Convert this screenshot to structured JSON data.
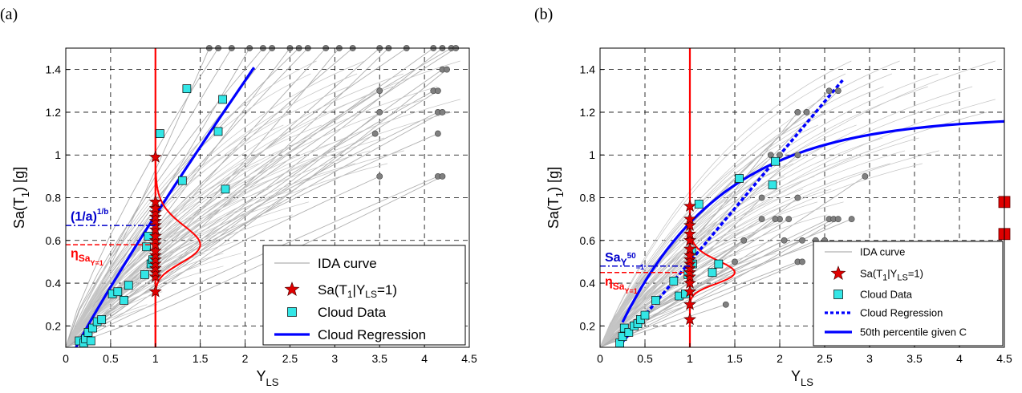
{
  "chart_data": [
    {
      "type": "scatter",
      "panel_label": "(a)",
      "xlabel": "Y",
      "xlabel_sub": "LS",
      "ylabel": "Sa(T",
      "ylabel_sub": "1",
      "ylabel_tail": ") [g]",
      "xlim": [
        0,
        4.5
      ],
      "ylim": [
        0.1,
        1.5
      ],
      "xticks": [
        "0",
        "0.5",
        "1",
        "1.5",
        "2",
        "2.5",
        "3",
        "3.5",
        "4",
        "4.5"
      ],
      "yticks": [
        "0.2",
        "0.4",
        "0.6",
        "0.8",
        "1",
        "1.2",
        "1.4"
      ],
      "grid": true,
      "legend_position": "bottom-right",
      "legend": [
        {
          "label": "IDA curve",
          "kind": "gray-line"
        },
        {
          "label": "Sa(T₁|Yₗₛ=1)",
          "kind": "red-star"
        },
        {
          "label": "Cloud Data",
          "kind": "cyan-square"
        },
        {
          "label": "Cloud Regression",
          "kind": "blue-line"
        }
      ],
      "legend_html": [
        "IDA curve",
        "Sa(T<tspan dy='4' font-size='12'>1</tspan><tspan dy='-4'>|Y</tspan><tspan dy='4' font-size='12'>LS</tspan><tspan dy='-4'>=1)</tspan>",
        "Cloud Data",
        "Cloud Regression"
      ],
      "annotations": [
        {
          "text": "(1/a)",
          "sup": "1/b",
          "y": 0.67,
          "color": "#0000cc"
        },
        {
          "text": "η",
          "sub": "Sa",
          "subsub": "Y=1",
          "y": 0.58,
          "color": "#ff0000"
        }
      ],
      "cloud_data": [
        [
          0.15,
          0.13
        ],
        [
          0.2,
          0.12
        ],
        [
          0.22,
          0.14
        ],
        [
          0.25,
          0.17
        ],
        [
          0.28,
          0.13
        ],
        [
          0.3,
          0.19
        ],
        [
          0.35,
          0.22
        ],
        [
          0.4,
          0.23
        ],
        [
          0.52,
          0.35
        ],
        [
          0.58,
          0.36
        ],
        [
          0.65,
          0.32
        ],
        [
          0.7,
          0.39
        ],
        [
          0.88,
          0.44
        ],
        [
          0.9,
          0.57
        ],
        [
          0.92,
          0.62
        ],
        [
          0.95,
          0.49
        ],
        [
          0.97,
          0.51
        ],
        [
          1.05,
          1.1
        ],
        [
          1.3,
          0.88
        ],
        [
          1.35,
          1.31
        ],
        [
          1.7,
          1.11
        ],
        [
          1.75,
          1.26
        ],
        [
          1.78,
          0.84
        ]
      ],
      "star_y": [
        0.36,
        0.43,
        0.45,
        0.47,
        0.49,
        0.51,
        0.53,
        0.55,
        0.58,
        0.6,
        0.62,
        0.65,
        0.67,
        0.69,
        0.71,
        0.73,
        0.75,
        0.78,
        0.99
      ],
      "regression": {
        "a": 2.2,
        "b": 1.1,
        "x_end": 2.1
      },
      "pdf": {
        "median": 0.58,
        "sigma": 0.1,
        "peak_x": 1.5
      },
      "gray_ends": [
        [
          1.6,
          1.5
        ],
        [
          1.7,
          1.5
        ],
        [
          1.85,
          1.5
        ],
        [
          2.05,
          1.5
        ],
        [
          2.2,
          1.5
        ],
        [
          2.3,
          1.5
        ],
        [
          2.5,
          1.5
        ],
        [
          2.6,
          1.5
        ],
        [
          2.7,
          1.5
        ],
        [
          2.9,
          1.5
        ],
        [
          3.05,
          1.5
        ],
        [
          3.2,
          1.5
        ],
        [
          3.5,
          1.5
        ],
        [
          3.6,
          1.5
        ],
        [
          3.8,
          1.5
        ],
        [
          4.1,
          1.5
        ],
        [
          4.2,
          1.5
        ],
        [
          4.3,
          1.5
        ],
        [
          4.35,
          1.5
        ],
        [
          4.2,
          1.4
        ],
        [
          4.25,
          1.4
        ],
        [
          4.1,
          1.3
        ],
        [
          4.15,
          1.3
        ],
        [
          3.5,
          1.2
        ],
        [
          4.15,
          1.2
        ],
        [
          4.2,
          1.2
        ],
        [
          3.45,
          1.1
        ],
        [
          4.15,
          1.1
        ],
        [
          3.5,
          0.9
        ],
        [
          4.15,
          0.9
        ],
        [
          4.2,
          0.9
        ],
        [
          3.5,
          1.3
        ]
      ]
    },
    {
      "type": "scatter",
      "panel_label": "(b)",
      "xlabel": "Y",
      "xlabel_sub": "LS",
      "ylabel": "Sa(T",
      "ylabel_sub": "1",
      "ylabel_tail": ") [g]",
      "xlim": [
        0,
        4.5
      ],
      "ylim": [
        0.1,
        1.5
      ],
      "xticks": [
        "0",
        "0.5",
        "1",
        "1.5",
        "2",
        "2.5",
        "3",
        "3.5",
        "4",
        "4.5"
      ],
      "yticks": [
        "0.2",
        "0.4",
        "0.6",
        "0.8",
        "1",
        "1.2",
        "1.4"
      ],
      "grid": true,
      "legend_position": "bottom-right",
      "legend": [
        {
          "label": "IDA curve",
          "kind": "gray-line"
        },
        {
          "label": "Sa(T₁|Yₗₛ=1)",
          "kind": "red-star"
        },
        {
          "label": "Cloud Data",
          "kind": "cyan-square"
        },
        {
          "label": "Cloud Regression",
          "kind": "blue-dotted"
        },
        {
          "label": "50th percentile given C",
          "kind": "blue-line"
        }
      ],
      "legend_html": [
        "IDA curve",
        "Sa(T<tspan dy='4' font-size='11'>1</tspan><tspan dy='-4'>|Y</tspan><tspan dy='4' font-size='11'>LS</tspan><tspan dy='-4'>=1)</tspan>",
        "Cloud Data",
        "Cloud Regression",
        "50th percentile given C"
      ],
      "annotations": [
        {
          "text": "Sa",
          "sub": "Y",
          "sup": "50",
          "subsub": "=1",
          "y": 0.48,
          "color": "#0000cc"
        },
        {
          "text": "η",
          "sub": "Sa",
          "subsub": "Y=1",
          "y": 0.45,
          "color": "#ff0000"
        }
      ],
      "cloud_data": [
        [
          0.22,
          0.12
        ],
        [
          0.25,
          0.15
        ],
        [
          0.27,
          0.19
        ],
        [
          0.32,
          0.17
        ],
        [
          0.38,
          0.2
        ],
        [
          0.42,
          0.21
        ],
        [
          0.45,
          0.23
        ],
        [
          0.5,
          0.25
        ],
        [
          0.62,
          0.32
        ],
        [
          0.82,
          0.41
        ],
        [
          0.88,
          0.34
        ],
        [
          0.95,
          0.35
        ],
        [
          0.98,
          0.44
        ],
        [
          1.02,
          0.55
        ],
        [
          1.03,
          0.49
        ],
        [
          1.1,
          0.77
        ],
        [
          1.25,
          0.45
        ],
        [
          1.32,
          0.49
        ],
        [
          1.55,
          0.89
        ],
        [
          1.92,
          0.86
        ],
        [
          1.95,
          0.97
        ]
      ],
      "star_y": [
        0.23,
        0.3,
        0.36,
        0.4,
        0.43,
        0.45,
        0.47,
        0.49,
        0.51,
        0.53,
        0.56,
        0.6,
        0.63,
        0.67,
        0.7,
        0.76
      ],
      "regression": {
        "a": 2.5,
        "b": 1.0,
        "x_end": 2.7
      },
      "percentile_curve": {
        "cap": 1.2,
        "x_end": 4.5
      },
      "pdf": {
        "median": 0.45,
        "sigma": 0.08,
        "peak_x": 1.5
      },
      "red_squares": [
        [
          4.5,
          0.63
        ],
        [
          4.5,
          0.78
        ]
      ],
      "gray_ends": [
        [
          1.8,
          0.8
        ],
        [
          2.0,
          0.7
        ],
        [
          2.1,
          0.7
        ],
        [
          2.2,
          0.8
        ],
        [
          2.25,
          0.6
        ],
        [
          2.2,
          0.5
        ],
        [
          2.25,
          0.5
        ],
        [
          2.5,
          0.6
        ],
        [
          2.55,
          0.7
        ],
        [
          2.6,
          0.7
        ],
        [
          2.65,
          0.7
        ],
        [
          2.8,
          0.7
        ],
        [
          2.4,
          0.6
        ],
        [
          2.2,
          1.2
        ],
        [
          2.3,
          1.2
        ],
        [
          2.2,
          1.0
        ],
        [
          2.0,
          1.0
        ],
        [
          1.9,
          1.0
        ],
        [
          1.6,
          0.6
        ],
        [
          1.4,
          0.3
        ],
        [
          1.5,
          0.5
        ],
        [
          2.55,
          1.3
        ],
        [
          2.65,
          1.3
        ],
        [
          2.95,
          0.9
        ],
        [
          1.8,
          0.7
        ],
        [
          2.05,
          0.6
        ],
        [
          1.95,
          0.7
        ]
      ]
    }
  ]
}
